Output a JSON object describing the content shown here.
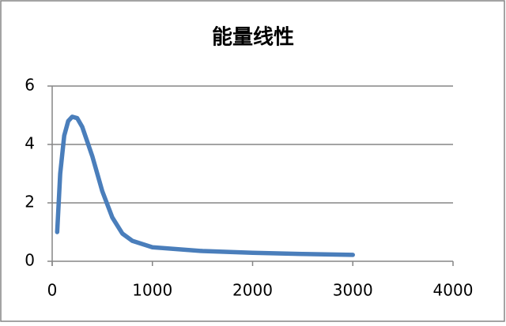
{
  "chart_data": {
    "type": "line",
    "title": "能量线性",
    "x": [
      50,
      80,
      120,
      160,
      200,
      250,
      300,
      400,
      500,
      600,
      700,
      800,
      1000,
      1500,
      2000,
      2500,
      3000
    ],
    "series": [
      {
        "color": "#4a7ebb",
        "values": [
          1.0,
          3.0,
          4.3,
          4.8,
          4.95,
          4.9,
          4.6,
          3.6,
          2.4,
          1.5,
          0.95,
          0.7,
          0.48,
          0.35,
          0.29,
          0.25,
          0.22
        ]
      }
    ],
    "xlim": [
      0,
      4000
    ],
    "xticks": [
      0,
      1000,
      2000,
      3000,
      4000
    ],
    "ylim": [
      0,
      6
    ],
    "yticks": [
      0,
      2,
      4,
      6
    ],
    "grid": true
  }
}
